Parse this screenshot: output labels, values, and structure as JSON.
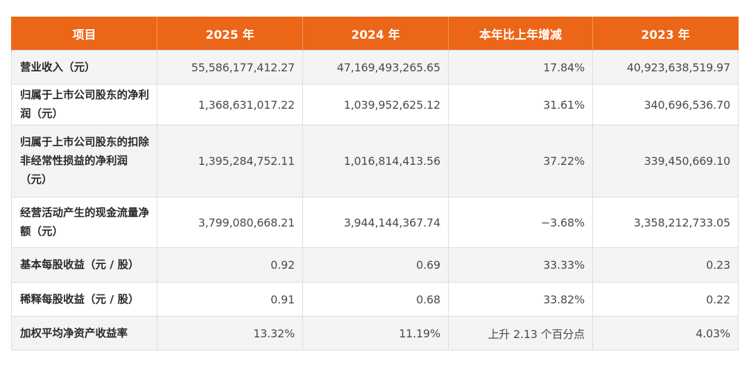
{
  "table": {
    "headers": [
      "项目",
      "2025 年",
      "2024 年",
      "本年比上年增减",
      "2023 年"
    ],
    "rows": [
      {
        "label": "营业收入（元）",
        "y2025": "55,586,177,412.27",
        "y2024": "47,169,493,265.65",
        "change": "17.84%",
        "y2023": "40,923,638,519.97"
      },
      {
        "label": "归属于上市公司股东的净利润（元）",
        "y2025": "1,368,631,017.22",
        "y2024": "1,039,952,625.12",
        "change": "31.61%",
        "y2023": "340,696,536.70"
      },
      {
        "label": "归属于上市公司股东的扣除非经常性损益的净利润（元）",
        "y2025": "1,395,284,752.11",
        "y2024": "1,016,814,413.56",
        "change": "37.22%",
        "y2023": "339,450,669.10"
      },
      {
        "label": "经营活动产生的现金流量净额（元）",
        "y2025": "3,799,080,668.21",
        "y2024": "3,944,144,367.74",
        "change": "−3.68%",
        "y2023": "3,358,212,733.05"
      },
      {
        "label": "基本每股收益（元 / 股）",
        "y2025": "0.92",
        "y2024": "0.69",
        "change": "33.33%",
        "y2023": "0.23"
      },
      {
        "label": "稀释每股收益（元 / 股）",
        "y2025": "0.91",
        "y2024": "0.68",
        "change": "33.82%",
        "y2023": "0.22"
      },
      {
        "label": "加权平均净资产收益率",
        "y2025": "13.32%",
        "y2024": "11.19%",
        "change": "上升 2.13 个百分点",
        "y2023": "4.03%"
      }
    ]
  },
  "colors": {
    "header_bg": "#ec6618",
    "header_text": "#ffffff",
    "row_alt_bg": "#f4f4f4",
    "border": "#dcdcdc"
  }
}
